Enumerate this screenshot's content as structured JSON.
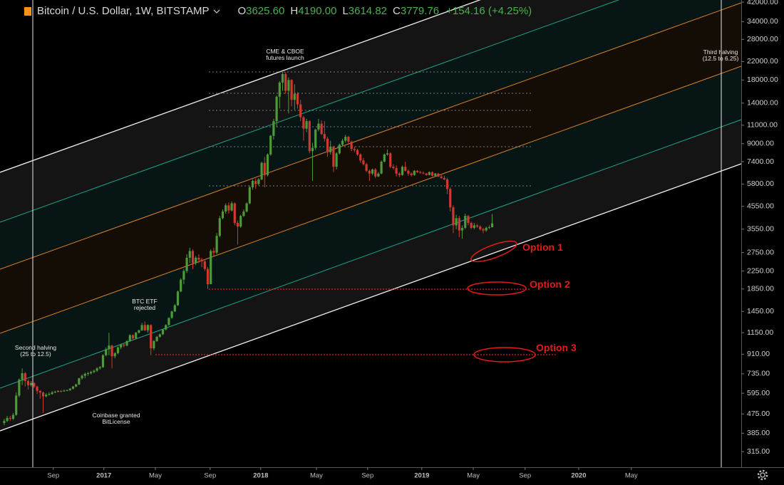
{
  "header": {
    "symbol": "Bitcoin / U.S. Dollar, 1W, BITSTAMP",
    "ohlc": [
      [
        "O",
        "3625.60"
      ],
      [
        "H",
        "4190.00"
      ],
      [
        "L",
        "3614.82"
      ],
      [
        "C",
        "3779.76"
      ]
    ],
    "change": "+154.16 (+4.25%)"
  },
  "chart_data": {
    "type": "candlestick",
    "log_scale": true,
    "up_color": "#4c9a38",
    "down_color": "#cf3a30",
    "ylim": [
      266,
      43000
    ],
    "xlim": [
      -1.4,
      246.2
    ],
    "yticks": [
      {
        "value": 42000,
        "label": "42000.00"
      },
      {
        "value": 34000,
        "label": "34000.00"
      },
      {
        "value": 28000,
        "label": "28000.00"
      },
      {
        "value": 22000,
        "label": "22000.00"
      },
      {
        "value": 18000,
        "label": "18000.00"
      },
      {
        "value": 14000,
        "label": "14000.00"
      },
      {
        "value": 11000,
        "label": "11000.00"
      },
      {
        "value": 9000,
        "label": "9000.00"
      },
      {
        "value": 7400,
        "label": "7400.00"
      },
      {
        "value": 5800,
        "label": "5800.00"
      },
      {
        "value": 4550,
        "label": "4550.00"
      },
      {
        "value": 3550,
        "label": "3550.00"
      },
      {
        "value": 2750,
        "label": "2750.00"
      },
      {
        "value": 2250,
        "label": "2250.00"
      },
      {
        "value": 1850,
        "label": "1850.00"
      },
      {
        "value": 1450,
        "label": "1450.00"
      },
      {
        "value": 1150,
        "label": "1150.00"
      },
      {
        "value": 910,
        "label": "910.00"
      },
      {
        "value": 735,
        "label": "735.00"
      },
      {
        "value": 595,
        "label": "595.00"
      },
      {
        "value": 475,
        "label": "475.00"
      },
      {
        "value": 385,
        "label": "385.00"
      },
      {
        "value": 315,
        "label": "315.00"
      }
    ],
    "xticks": [
      {
        "value": 16.4,
        "label": "Sep"
      },
      {
        "value": 33.3,
        "label": "2017"
      },
      {
        "value": 50.5,
        "label": "May"
      },
      {
        "value": 68.8,
        "label": "Sep"
      },
      {
        "value": 85.7,
        "label": "2018"
      },
      {
        "value": 104.3,
        "label": "May"
      },
      {
        "value": 121.4,
        "label": "Sep"
      },
      {
        "value": 139.5,
        "label": "2019"
      },
      {
        "value": 156.7,
        "label": "May"
      },
      {
        "value": 174,
        "label": "Sep"
      },
      {
        "value": 191.9,
        "label": "2020"
      },
      {
        "value": 209.5,
        "label": "May"
      }
    ],
    "annotations": [
      [
        "CME & CBOE",
        "futures launch"
      ],
      [
        "Third halving",
        "(12.5 to 6.25)"
      ],
      [
        "BTC ETF",
        "rejected"
      ],
      [
        "Second halving",
        "(25 to 12.5)"
      ],
      [
        "Coinbase granted",
        "BitLicense"
      ]
    ],
    "options": [
      "Option 1",
      "Option 2",
      "Option 3"
    ],
    "ohlc": [
      [
        430,
        450,
        420,
        440
      ],
      [
        440,
        465,
        435,
        455
      ],
      [
        455,
        465,
        440,
        450
      ],
      [
        450,
        480,
        445,
        470
      ],
      [
        470,
        600,
        465,
        580
      ],
      [
        580,
        700,
        570,
        690
      ],
      [
        690,
        780,
        650,
        740
      ],
      [
        740,
        750,
        640,
        680
      ],
      [
        680,
        690,
        620,
        650
      ],
      [
        650,
        680,
        640,
        665
      ],
      [
        665,
        670,
        630,
        640
      ],
      [
        640,
        645,
        590,
        610
      ],
      [
        610,
        615,
        560,
        600
      ],
      [
        600,
        605,
        480,
        575
      ],
      [
        575,
        595,
        570,
        585
      ],
      [
        585,
        600,
        580,
        590
      ],
      [
        590,
        610,
        585,
        600
      ],
      [
        600,
        612,
        595,
        605
      ],
      [
        605,
        615,
        600,
        610
      ],
      [
        610,
        615,
        600,
        608
      ],
      [
        608,
        620,
        605,
        612
      ],
      [
        612,
        620,
        608,
        615
      ],
      [
        615,
        630,
        610,
        625
      ],
      [
        625,
        645,
        620,
        640
      ],
      [
        640,
        660,
        635,
        655
      ],
      [
        655,
        705,
        650,
        700
      ],
      [
        700,
        730,
        690,
        720
      ],
      [
        720,
        745,
        700,
        735
      ],
      [
        735,
        750,
        720,
        740
      ],
      [
        740,
        760,
        730,
        750
      ],
      [
        750,
        770,
        740,
        760
      ],
      [
        760,
        790,
        750,
        780
      ],
      [
        780,
        800,
        770,
        790
      ],
      [
        790,
        910,
        785,
        900
      ],
      [
        900,
        980,
        890,
        960
      ],
      [
        960,
        1150,
        900,
        1000
      ],
      [
        1000,
        1010,
        780,
        890
      ],
      [
        890,
        930,
        870,
        920
      ],
      [
        920,
        990,
        910,
        980
      ],
      [
        980,
        1020,
        960,
        1010
      ],
      [
        1010,
        1030,
        980,
        1000
      ],
      [
        1000,
        1060,
        990,
        1050
      ],
      [
        1050,
        1130,
        1040,
        1120
      ],
      [
        1120,
        1130,
        1070,
        1080
      ],
      [
        1080,
        1160,
        1070,
        1150
      ],
      [
        1150,
        1190,
        1140,
        1180
      ],
      [
        1180,
        1280,
        1170,
        1250
      ],
      [
        1250,
        1300,
        1170,
        1180
      ],
      [
        1180,
        1260,
        1150,
        1250
      ],
      [
        1250,
        1260,
        900,
        970
      ],
      [
        970,
        1060,
        950,
        1050
      ],
      [
        1050,
        1110,
        1040,
        1100
      ],
      [
        1100,
        1140,
        1090,
        1130
      ],
      [
        1130,
        1200,
        1120,
        1190
      ],
      [
        1190,
        1260,
        1180,
        1250
      ],
      [
        1250,
        1360,
        1240,
        1350
      ],
      [
        1350,
        1460,
        1340,
        1450
      ],
      [
        1450,
        1570,
        1440,
        1550
      ],
      [
        1550,
        1820,
        1540,
        1800
      ],
      [
        1800,
        2080,
        1790,
        2050
      ],
      [
        2050,
        2300,
        1950,
        2250
      ],
      [
        2250,
        2700,
        2200,
        2600
      ],
      [
        2600,
        2900,
        2450,
        2800
      ],
      [
        2800,
        2850,
        2300,
        2450
      ],
      [
        2450,
        2650,
        2400,
        2600
      ],
      [
        2600,
        2700,
        2450,
        2550
      ],
      [
        2550,
        2600,
        2350,
        2500
      ],
      [
        2500,
        2550,
        2250,
        2300
      ],
      [
        2300,
        2350,
        1850,
        1950
      ],
      [
        1950,
        2850,
        1950,
        2800
      ],
      [
        2800,
        2900,
        2650,
        2750
      ],
      [
        2750,
        3400,
        2700,
        3300
      ],
      [
        3300,
        4100,
        3250,
        4000
      ],
      [
        4000,
        4400,
        3950,
        4300
      ],
      [
        4300,
        4700,
        4200,
        4600
      ],
      [
        4600,
        4750,
        4200,
        4350
      ],
      [
        4350,
        4800,
        4300,
        4700
      ],
      [
        4700,
        4750,
        3700,
        3800
      ],
      [
        3800,
        3900,
        3000,
        3650
      ],
      [
        3650,
        4150,
        3600,
        4100
      ],
      [
        4100,
        4400,
        4050,
        4300
      ],
      [
        4300,
        4750,
        4250,
        4700
      ],
      [
        4700,
        5700,
        4650,
        5600
      ],
      [
        5600,
        6100,
        5450,
        6000
      ],
      [
        6000,
        6150,
        5500,
        5800
      ],
      [
        5800,
        6200,
        5700,
        6100
      ],
      [
        6100,
        7400,
        6050,
        7300
      ],
      [
        7300,
        7800,
        5600,
        6400
      ],
      [
        6400,
        8100,
        6300,
        8000
      ],
      [
        8000,
        9900,
        7900,
        9800
      ],
      [
        9800,
        11800,
        9400,
        11500
      ],
      [
        11500,
        15200,
        10800,
        15000
      ],
      [
        15000,
        17800,
        13200,
        17500
      ],
      [
        17500,
        19666,
        16000,
        19200
      ],
      [
        19200,
        19600,
        15500,
        16000
      ],
      [
        16000,
        18500,
        12500,
        18000
      ],
      [
        18000,
        18200,
        13500,
        14500
      ],
      [
        14500,
        17200,
        13000,
        15500
      ],
      [
        15500,
        15800,
        13200,
        13800
      ],
      [
        13800,
        14500,
        11500,
        12000
      ],
      [
        12000,
        12200,
        9300,
        10600
      ],
      [
        10600,
        11800,
        10200,
        11500
      ],
      [
        11500,
        11600,
        8100,
        8300
      ],
      [
        8300,
        9100,
        6000,
        8600
      ],
      [
        8600,
        10600,
        8400,
        10500
      ],
      [
        10500,
        11800,
        10300,
        11200
      ],
      [
        11200,
        11600,
        9900,
        10000
      ],
      [
        10000,
        11500,
        9200,
        9500
      ],
      [
        9500,
        9700,
        7800,
        8200
      ],
      [
        8200,
        9300,
        8000,
        8700
      ],
      [
        8700,
        8800,
        6600,
        7000
      ],
      [
        7000,
        8200,
        6800,
        8100
      ],
      [
        8100,
        9000,
        8000,
        8900
      ],
      [
        8900,
        9500,
        8800,
        9300
      ],
      [
        9300,
        9900,
        9100,
        9700
      ],
      [
        9700,
        9800,
        9000,
        9200
      ],
      [
        9200,
        9300,
        8300,
        8500
      ],
      [
        8500,
        8700,
        8200,
        8400
      ],
      [
        8400,
        8500,
        7900,
        8000
      ],
      [
        8000,
        8100,
        7300,
        7500
      ],
      [
        7500,
        7700,
        7100,
        7200
      ],
      [
        7200,
        7300,
        6600,
        6700
      ],
      [
        6700,
        6800,
        6000,
        6500
      ],
      [
        6500,
        6850,
        6400,
        6800
      ],
      [
        6800,
        6900,
        6200,
        6300
      ],
      [
        6300,
        6600,
        6250,
        6500
      ],
      [
        6500,
        7500,
        6450,
        7400
      ],
      [
        7400,
        8100,
        7350,
        8000
      ],
      [
        8000,
        8450,
        7900,
        8100
      ],
      [
        8100,
        8200,
        6900,
        7000
      ],
      [
        7000,
        7200,
        6800,
        6900
      ],
      [
        6900,
        7100,
        6300,
        6500
      ],
      [
        6500,
        6600,
        6250,
        6400
      ],
      [
        6400,
        7100,
        6350,
        7000
      ],
      [
        7000,
        7400,
        6650,
        6700
      ],
      [
        6700,
        6800,
        6350,
        6500
      ],
      [
        6500,
        6600,
        6300,
        6400
      ],
      [
        6400,
        6750,
        6350,
        6700
      ],
      [
        6700,
        6750,
        6550,
        6600
      ],
      [
        6600,
        6700,
        6500,
        6550
      ],
      [
        6550,
        6650,
        6450,
        6500
      ],
      [
        6500,
        6550,
        6350,
        6400
      ],
      [
        6400,
        6650,
        6380,
        6600
      ],
      [
        6600,
        6650,
        6300,
        6350
      ],
      [
        6350,
        6550,
        6300,
        6500
      ],
      [
        6500,
        6550,
        6250,
        6300
      ],
      [
        6300,
        6450,
        6150,
        6200
      ],
      [
        6200,
        6350,
        6050,
        6100
      ],
      [
        6100,
        6200,
        5200,
        5500
      ],
      [
        5500,
        5600,
        4300,
        4500
      ],
      [
        4500,
        4600,
        3400,
        3700
      ],
      [
        3700,
        4150,
        3550,
        4000
      ],
      [
        4000,
        4100,
        3250,
        3500
      ],
      [
        3500,
        3700,
        3200,
        3600
      ],
      [
        3600,
        4200,
        3550,
        4100
      ],
      [
        4100,
        4150,
        3700,
        3800
      ],
      [
        3800,
        3850,
        3550,
        3600
      ],
      [
        3600,
        3800,
        3550,
        3700
      ],
      [
        3700,
        3750,
        3600,
        3650
      ],
      [
        3650,
        3700,
        3500,
        3550
      ],
      [
        3550,
        3600,
        3400,
        3500
      ],
      [
        3500,
        3650,
        3450,
        3600
      ],
      [
        3600,
        3700,
        3550,
        3625.6
      ],
      [
        3625.6,
        4190,
        3614.82,
        3779.76
      ]
    ]
  }
}
